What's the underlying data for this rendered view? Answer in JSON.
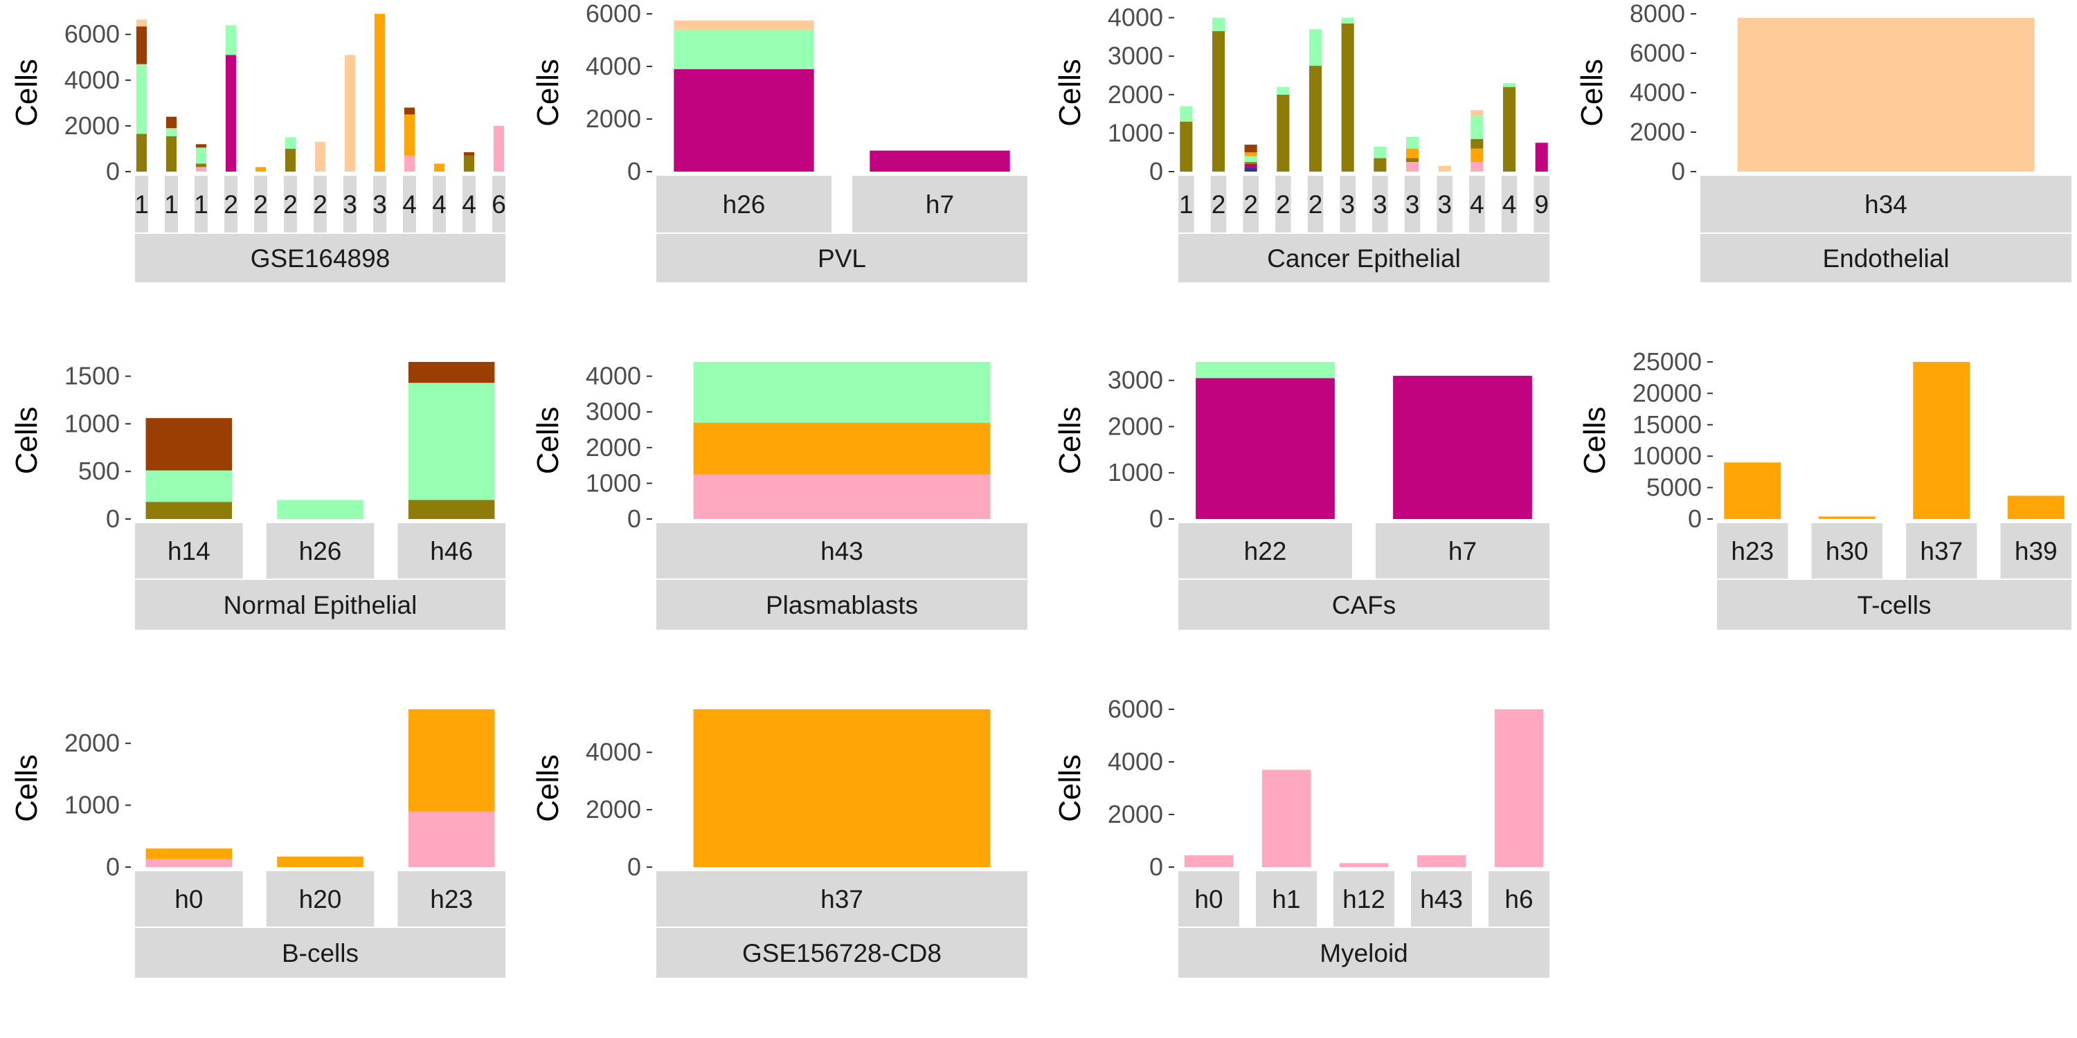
{
  "colors": {
    "magenta": "#c2037f",
    "mint": "#97ffb1",
    "peach": "#ffcc99",
    "orange": "#ffa505",
    "olive": "#8e7b0a",
    "brown": "#9b3e03",
    "pink": "#ffa8bf",
    "navy": "#2b3c8c",
    "strip": "#d9d9d9"
  },
  "chart_data": [
    {
      "type": "bar",
      "title": "GSE164898",
      "ylabel": "Cells",
      "ylim": [
        0,
        6900
      ],
      "yticks": [
        0,
        2000,
        4000,
        6000
      ],
      "categories": [
        "1",
        "1",
        "1",
        "2",
        "2",
        "2",
        "2",
        "3",
        "3",
        "4",
        "4",
        "4",
        "6"
      ],
      "segments": [
        [
          [
            "olive",
            1650
          ],
          [
            "mint",
            3050
          ],
          [
            "brown",
            1650
          ],
          [
            "peach",
            300
          ]
        ],
        [
          [
            "olive",
            1550
          ],
          [
            "mint",
            350
          ],
          [
            "brown",
            500
          ]
        ],
        [
          [
            "pink",
            200
          ],
          [
            "olive",
            150
          ],
          [
            "mint",
            700
          ],
          [
            "brown",
            150
          ]
        ],
        [
          [
            "magenta",
            5100
          ],
          [
            "mint",
            1300
          ]
        ],
        [
          [
            "orange",
            200
          ]
        ],
        [
          [
            "olive",
            1000
          ],
          [
            "mint",
            500
          ]
        ],
        [
          [
            "peach",
            1300
          ]
        ],
        [
          [
            "peach",
            5100
          ]
        ],
        [
          [
            "orange",
            6900
          ]
        ],
        [
          [
            "pink",
            700
          ],
          [
            "orange",
            1800
          ],
          [
            "brown",
            300
          ]
        ],
        [
          [
            "orange",
            350
          ]
        ],
        [
          [
            "olive",
            700
          ],
          [
            "brown",
            150
          ]
        ],
        [
          [
            "pink",
            2000
          ]
        ]
      ]
    },
    {
      "type": "bar",
      "title": "PVL",
      "ylabel": "Cells",
      "ylim": [
        0,
        6000
      ],
      "yticks": [
        0,
        2000,
        4000,
        6000
      ],
      "categories": [
        "h26",
        "h7"
      ],
      "segments": [
        [
          [
            "magenta",
            3900
          ],
          [
            "mint",
            1500
          ],
          [
            "peach",
            350
          ]
        ],
        [
          [
            "magenta",
            800
          ]
        ]
      ]
    },
    {
      "type": "bar",
      "title": "Cancer Epithelial",
      "ylabel": "Cells",
      "ylim": [
        0,
        4100
      ],
      "yticks": [
        0,
        1000,
        2000,
        3000,
        4000
      ],
      "categories": [
        "1",
        "2",
        "2",
        "2",
        "2",
        "3",
        "3",
        "3",
        "3",
        "4",
        "4",
        "9"
      ],
      "segments": [
        [
          [
            "olive",
            1300
          ],
          [
            "mint",
            400
          ]
        ],
        [
          [
            "olive",
            3650
          ],
          [
            "mint",
            350
          ]
        ],
        [
          [
            "navy",
            100
          ],
          [
            "magenta",
            100
          ],
          [
            "olive",
            50
          ],
          [
            "mint",
            150
          ],
          [
            "orange",
            100
          ],
          [
            "brown",
            200
          ]
        ],
        [
          [
            "olive",
            2000
          ],
          [
            "mint",
            200
          ]
        ],
        [
          [
            "olive",
            2750
          ],
          [
            "mint",
            950
          ]
        ],
        [
          [
            "olive",
            3850
          ],
          [
            "mint",
            150
          ]
        ],
        [
          [
            "olive",
            350
          ],
          [
            "mint",
            300
          ]
        ],
        [
          [
            "pink",
            250
          ],
          [
            "olive",
            100
          ],
          [
            "orange",
            250
          ],
          [
            "mint",
            300
          ]
        ],
        [
          [
            "peach",
            150
          ]
        ],
        [
          [
            "pink",
            250
          ],
          [
            "orange",
            350
          ],
          [
            "olive",
            250
          ],
          [
            "mint",
            600
          ],
          [
            "peach",
            150
          ]
        ],
        [
          [
            "olive",
            2200
          ],
          [
            "mint",
            100
          ]
        ],
        [
          [
            "magenta",
            750
          ]
        ]
      ]
    },
    {
      "type": "bar",
      "title": "Endothelial",
      "ylabel": "Cells",
      "ylim": [
        0,
        8000
      ],
      "yticks": [
        0,
        2000,
        4000,
        6000,
        8000
      ],
      "categories": [
        "h34"
      ],
      "segments": [
        [
          [
            "peach",
            7800
          ]
        ]
      ]
    },
    {
      "type": "bar",
      "title": "Normal Epithelial",
      "ylabel": "Cells",
      "ylim": [
        0,
        1650
      ],
      "yticks": [
        0,
        500,
        1000,
        1500
      ],
      "categories": [
        "h14",
        "h26",
        "h46"
      ],
      "segments": [
        [
          [
            "olive",
            180
          ],
          [
            "mint",
            330
          ],
          [
            "brown",
            550
          ]
        ],
        [
          [
            "mint",
            200
          ]
        ],
        [
          [
            "olive",
            200
          ],
          [
            "mint",
            1230
          ],
          [
            "brown",
            220
          ]
        ]
      ]
    },
    {
      "type": "bar",
      "title": "Plasmablasts",
      "ylabel": "Cells",
      "ylim": [
        0,
        4400
      ],
      "yticks": [
        0,
        1000,
        2000,
        3000,
        4000
      ],
      "categories": [
        "h43"
      ],
      "segments": [
        [
          [
            "pink",
            1250
          ],
          [
            "orange",
            1450
          ],
          [
            "mint",
            1700
          ]
        ]
      ]
    },
    {
      "type": "bar",
      "title": "CAFs",
      "ylabel": "Cells",
      "ylim": [
        0,
        3400
      ],
      "yticks": [
        0,
        1000,
        2000,
        3000
      ],
      "categories": [
        "h22",
        "h7"
      ],
      "segments": [
        [
          [
            "magenta",
            3050
          ],
          [
            "mint",
            350
          ]
        ],
        [
          [
            "magenta",
            3100
          ]
        ]
      ]
    },
    {
      "type": "bar",
      "title": "T-cells",
      "ylabel": "Cells",
      "ylim": [
        0,
        25000
      ],
      "yticks": [
        0,
        5000,
        10000,
        15000,
        20000,
        25000
      ],
      "categories": [
        "h23",
        "h30",
        "h37",
        "h39"
      ],
      "segments": [
        [
          [
            "orange",
            9000
          ]
        ],
        [
          [
            "orange",
            400
          ]
        ],
        [
          [
            "orange",
            25000
          ]
        ],
        [
          [
            "orange",
            3700
          ]
        ]
      ]
    },
    {
      "type": "bar",
      "title": "B-cells",
      "ylabel": "Cells",
      "ylim": [
        0,
        2550
      ],
      "yticks": [
        0,
        1000,
        2000
      ],
      "categories": [
        "h0",
        "h20",
        "h23"
      ],
      "segments": [
        [
          [
            "pink",
            130
          ],
          [
            "orange",
            170
          ]
        ],
        [
          [
            "orange",
            170
          ]
        ],
        [
          [
            "pink",
            900
          ],
          [
            "orange",
            1650
          ]
        ]
      ]
    },
    {
      "type": "bar",
      "title": "GSE156728-CD8",
      "ylabel": "Cells",
      "ylim": [
        0,
        5500
      ],
      "yticks": [
        0,
        2000,
        4000
      ],
      "categories": [
        "h37"
      ],
      "segments": [
        [
          [
            "orange",
            5500
          ]
        ]
      ]
    },
    {
      "type": "bar",
      "title": "Myeloid",
      "ylabel": "Cells",
      "ylim": [
        0,
        6000
      ],
      "yticks": [
        0,
        2000,
        4000,
        6000
      ],
      "categories": [
        "h0",
        "h1",
        "h12",
        "h43",
        "h6"
      ],
      "segments": [
        [
          [
            "pink",
            450
          ]
        ],
        [
          [
            "pink",
            3700
          ]
        ],
        [
          [
            "pink",
            150
          ]
        ],
        [
          [
            "pink",
            450
          ]
        ],
        [
          [
            "pink",
            6000
          ]
        ]
      ]
    }
  ]
}
